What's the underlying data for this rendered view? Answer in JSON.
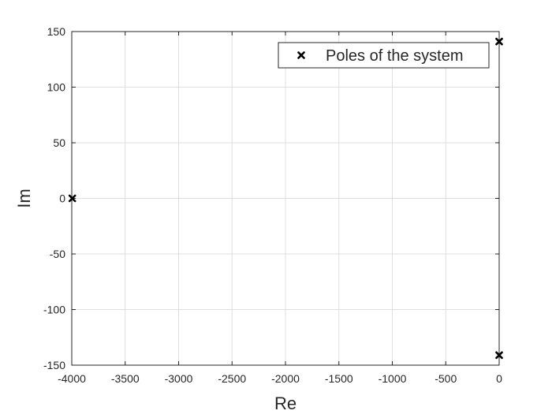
{
  "chart_data": {
    "type": "scatter",
    "title": "",
    "xlabel": "Re",
    "ylabel": "Im",
    "xlim": [
      -4000,
      0
    ],
    "ylim": [
      -150,
      150
    ],
    "xticks": [
      -4000,
      -3500,
      -3000,
      -2500,
      -2000,
      -1500,
      -1000,
      -500,
      0
    ],
    "yticks": [
      -150,
      -100,
      -50,
      0,
      50,
      100,
      150
    ],
    "grid": true,
    "legend_position": "top-right",
    "series": [
      {
        "name": "Poles of the system",
        "marker": "x",
        "color": "#000000",
        "points": [
          {
            "x": -3995,
            "y": 0
          },
          {
            "x": 0,
            "y": 141
          },
          {
            "x": 0,
            "y": -141
          }
        ]
      }
    ]
  }
}
